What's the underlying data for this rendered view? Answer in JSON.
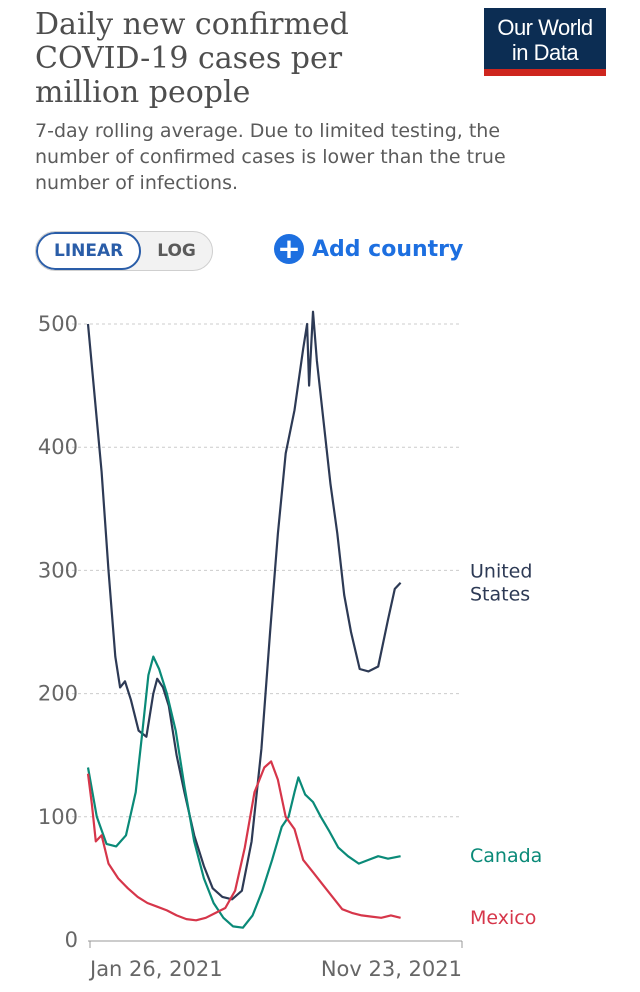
{
  "header": {
    "title": "Daily new confirmed COVID-19 cases per million people",
    "subtitle": "7-day rolling average. Due to limited testing, the number of confirmed cases is lower than the true number of infections.",
    "logo_line1": "Our World",
    "logo_line2": "in Data"
  },
  "controls": {
    "linear_label": "LINEAR",
    "log_label": "LOG",
    "active_scale": "linear",
    "add_country_label": "Add country",
    "add_icon": "plus-circle-icon"
  },
  "colors": {
    "united_states": "#2d3a55",
    "canada": "#0a8a78",
    "mexico": "#d6364a",
    "grid": "#cccccc",
    "accent": "#1d6fe0"
  },
  "chart_data": {
    "type": "line",
    "x_axis": {
      "type": "date",
      "start": "2020-12-01",
      "end": "2021-12-20",
      "tick_labels": [
        "Jan 26, 2021",
        "Nov 23, 2021"
      ]
    },
    "y_axis": {
      "ylim": [
        0,
        500
      ],
      "ticks": [
        0,
        100,
        200,
        300,
        400,
        500
      ]
    },
    "grid": "horizontal dashed",
    "series": [
      {
        "name": "United States",
        "label_lines": [
          "United",
          "States"
        ],
        "color": "#2d3a55",
        "points": [
          [
            "2020-12-01",
            500
          ],
          [
            "2020-12-08",
            440
          ],
          [
            "2020-12-15",
            380
          ],
          [
            "2020-12-22",
            300
          ],
          [
            "2020-12-29",
            230
          ],
          [
            "2021-01-03",
            205
          ],
          [
            "2021-01-08",
            210
          ],
          [
            "2021-01-14",
            195
          ],
          [
            "2021-01-22",
            170
          ],
          [
            "2021-01-30",
            165
          ],
          [
            "2021-02-06",
            200
          ],
          [
            "2021-02-10",
            212
          ],
          [
            "2021-02-16",
            205
          ],
          [
            "2021-02-22",
            190
          ],
          [
            "2021-03-02",
            150
          ],
          [
            "2021-03-10",
            120
          ],
          [
            "2021-03-20",
            85
          ],
          [
            "2021-03-30",
            60
          ],
          [
            "2021-04-08",
            42
          ],
          [
            "2021-04-18",
            35
          ],
          [
            "2021-04-28",
            33
          ],
          [
            "2021-05-08",
            40
          ],
          [
            "2021-05-18",
            80
          ],
          [
            "2021-05-28",
            155
          ],
          [
            "2021-06-06",
            250
          ],
          [
            "2021-06-14",
            330
          ],
          [
            "2021-06-22",
            395
          ],
          [
            "2021-07-01",
            430
          ],
          [
            "2021-07-10",
            480
          ],
          [
            "2021-07-14",
            500
          ],
          [
            "2021-07-16",
            450
          ],
          [
            "2021-07-20",
            510
          ],
          [
            "2021-07-24",
            470
          ],
          [
            "2021-07-31",
            420
          ],
          [
            "2021-08-07",
            370
          ],
          [
            "2021-08-14",
            330
          ],
          [
            "2021-08-21",
            280
          ],
          [
            "2021-08-28",
            250
          ],
          [
            "2021-09-06",
            220
          ],
          [
            "2021-09-15",
            218
          ],
          [
            "2021-09-25",
            222
          ],
          [
            "2021-10-05",
            260
          ],
          [
            "2021-10-12",
            285
          ],
          [
            "2021-10-18",
            290
          ]
        ]
      },
      {
        "name": "Canada",
        "label_lines": [
          "Canada"
        ],
        "color": "#0a8a78",
        "points": [
          [
            "2020-12-01",
            140
          ],
          [
            "2020-12-10",
            100
          ],
          [
            "2020-12-20",
            78
          ],
          [
            "2020-12-30",
            76
          ],
          [
            "2021-01-09",
            85
          ],
          [
            "2021-01-19",
            120
          ],
          [
            "2021-01-26",
            170
          ],
          [
            "2021-02-01",
            215
          ],
          [
            "2021-02-06",
            230
          ],
          [
            "2021-02-12",
            220
          ],
          [
            "2021-02-20",
            200
          ],
          [
            "2021-03-01",
            170
          ],
          [
            "2021-03-10",
            125
          ],
          [
            "2021-03-20",
            80
          ],
          [
            "2021-03-30",
            50
          ],
          [
            "2021-04-09",
            30
          ],
          [
            "2021-04-19",
            18
          ],
          [
            "2021-04-29",
            11
          ],
          [
            "2021-05-09",
            10
          ],
          [
            "2021-05-19",
            20
          ],
          [
            "2021-05-29",
            40
          ],
          [
            "2021-06-08",
            65
          ],
          [
            "2021-06-18",
            92
          ],
          [
            "2021-06-25",
            100
          ],
          [
            "2021-07-01",
            120
          ],
          [
            "2021-07-05",
            132
          ],
          [
            "2021-07-12",
            118
          ],
          [
            "2021-07-20",
            112
          ],
          [
            "2021-07-28",
            100
          ],
          [
            "2021-08-06",
            88
          ],
          [
            "2021-08-15",
            75
          ],
          [
            "2021-08-25",
            68
          ],
          [
            "2021-09-05",
            62
          ],
          [
            "2021-09-15",
            65
          ],
          [
            "2021-09-25",
            68
          ],
          [
            "2021-10-05",
            66
          ],
          [
            "2021-10-18",
            68
          ]
        ]
      },
      {
        "name": "Mexico",
        "label_lines": [
          "Mexico"
        ],
        "color": "#d6364a",
        "points": [
          [
            "2020-12-01",
            135
          ],
          [
            "2020-12-05",
            110
          ],
          [
            "2020-12-09",
            80
          ],
          [
            "2020-12-15",
            85
          ],
          [
            "2020-12-22",
            62
          ],
          [
            "2021-01-01",
            50
          ],
          [
            "2021-01-11",
            42
          ],
          [
            "2021-01-21",
            35
          ],
          [
            "2021-01-31",
            30
          ],
          [
            "2021-02-10",
            27
          ],
          [
            "2021-02-20",
            24
          ],
          [
            "2021-03-02",
            20
          ],
          [
            "2021-03-12",
            17
          ],
          [
            "2021-03-22",
            16
          ],
          [
            "2021-04-01",
            18
          ],
          [
            "2021-04-11",
            22
          ],
          [
            "2021-04-21",
            26
          ],
          [
            "2021-05-01",
            40
          ],
          [
            "2021-05-11",
            75
          ],
          [
            "2021-05-21",
            120
          ],
          [
            "2021-05-31",
            140
          ],
          [
            "2021-06-07",
            145
          ],
          [
            "2021-06-14",
            130
          ],
          [
            "2021-06-22",
            100
          ],
          [
            "2021-07-01",
            90
          ],
          [
            "2021-07-10",
            65
          ],
          [
            "2021-07-20",
            55
          ],
          [
            "2021-07-30",
            45
          ],
          [
            "2021-08-09",
            35
          ],
          [
            "2021-08-19",
            25
          ],
          [
            "2021-08-29",
            22
          ],
          [
            "2021-09-08",
            20
          ],
          [
            "2021-09-18",
            19
          ],
          [
            "2021-09-28",
            18
          ],
          [
            "2021-10-08",
            20
          ],
          [
            "2021-10-18",
            18
          ]
        ]
      }
    ]
  }
}
